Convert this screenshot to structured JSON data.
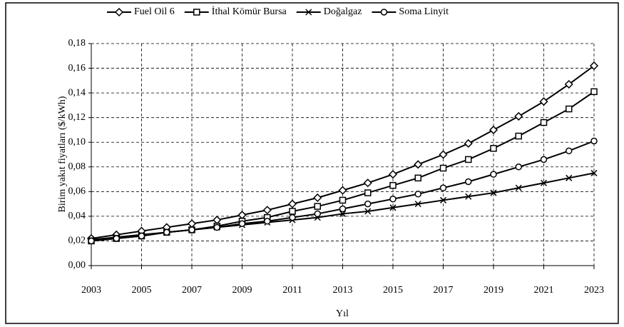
{
  "chart_data": {
    "type": "line",
    "y_label": "Birim yakıt fiyatları ($/kWh)",
    "x_label": "Yıl",
    "x": [
      2003,
      2004,
      2005,
      2006,
      2007,
      2008,
      2009,
      2010,
      2011,
      2012,
      2013,
      2014,
      2015,
      2016,
      2017,
      2018,
      2019,
      2020,
      2021,
      2022,
      2023
    ],
    "xlim": [
      2003,
      2023
    ],
    "xticks": [
      2003,
      2005,
      2007,
      2009,
      2011,
      2013,
      2015,
      2017,
      2019,
      2021,
      2023
    ],
    "ylim": [
      0,
      0.18
    ],
    "yticks": [
      {
        "value": 0,
        "label": "0,00"
      },
      {
        "value": 0.02,
        "label": "0,02"
      },
      {
        "value": 0.04,
        "label": "0,04"
      },
      {
        "value": 0.06,
        "label": "0,06"
      },
      {
        "value": 0.08,
        "label": "0,08"
      },
      {
        "value": 0.1,
        "label": "0,10"
      },
      {
        "value": 0.12,
        "label": "0,12"
      },
      {
        "value": 0.14,
        "label": "0,14"
      },
      {
        "value": 0.16,
        "label": "0,16"
      },
      {
        "value": 0.18,
        "label": "0,18"
      }
    ],
    "grid": true,
    "legend": "top",
    "series": [
      {
        "name": "Fuel Oil 6",
        "color": "#000000",
        "marker": "diamond",
        "values": [
          0.022,
          0.025,
          0.028,
          0.031,
          0.034,
          0.037,
          0.041,
          0.045,
          0.05,
          0.055,
          0.061,
          0.067,
          0.074,
          0.082,
          0.09,
          0.099,
          0.11,
          0.121,
          0.133,
          0.147,
          0.162
        ]
      },
      {
        "name": "İthal Kömür Bursa",
        "color": "#000000",
        "marker": "square",
        "values": [
          0.02,
          0.022,
          0.024,
          0.027,
          0.029,
          0.032,
          0.036,
          0.039,
          0.044,
          0.048,
          0.053,
          0.059,
          0.065,
          0.071,
          0.079,
          0.086,
          0.095,
          0.105,
          0.116,
          0.127,
          0.141
        ]
      },
      {
        "name": "Doğalgaz",
        "color": "#000000",
        "marker": "x",
        "values": [
          0.021,
          0.023,
          0.025,
          0.027,
          0.029,
          0.031,
          0.033,
          0.035,
          0.037,
          0.039,
          0.042,
          0.044,
          0.047,
          0.05,
          0.053,
          0.056,
          0.059,
          0.063,
          0.067,
          0.071,
          0.075
        ]
      },
      {
        "name": "Soma Linyit",
        "color": "#000000",
        "marker": "circle",
        "values": [
          0.02,
          0.022,
          0.024,
          0.027,
          0.029,
          0.031,
          0.034,
          0.036,
          0.039,
          0.042,
          0.046,
          0.05,
          0.054,
          0.058,
          0.063,
          0.068,
          0.074,
          0.08,
          0.086,
          0.093,
          0.101
        ]
      }
    ]
  }
}
